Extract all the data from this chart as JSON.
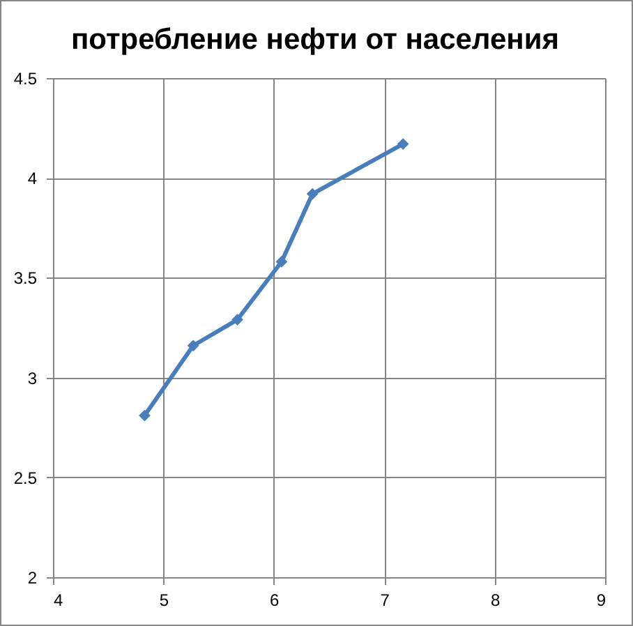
{
  "chart_data": {
    "type": "line",
    "title": "потребление нефти от населения",
    "x": [
      4.83,
      5.27,
      5.67,
      6.07,
      6.35,
      7.17
    ],
    "series": [
      {
        "color": "#4a7ebb",
        "values": [
          2.81,
          3.16,
          3.29,
          3.58,
          3.92,
          4.17
        ]
      }
    ],
    "xlim": [
      4,
      9
    ],
    "xticks": [
      4,
      5,
      6,
      7,
      8,
      9
    ],
    "ylim": [
      2,
      4.5
    ],
    "yticks": [
      2,
      2.5,
      3,
      3.5,
      4,
      4.5
    ],
    "grid": true,
    "marker": "diamond",
    "line_style": "solid"
  }
}
